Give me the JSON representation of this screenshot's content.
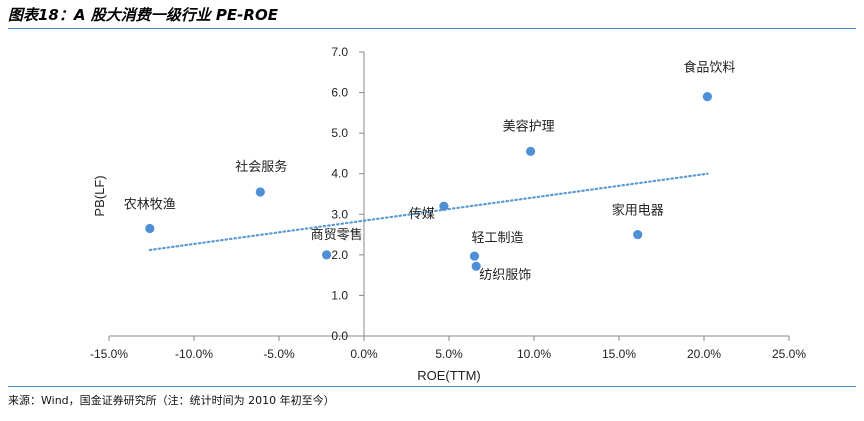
{
  "header": {
    "title": "图表18：A 股大消费一级行业 PE-ROE"
  },
  "footer": {
    "source": "来源：Wind，国金证券研究所（注：统计时间为 2010 年初至今）"
  },
  "colors": {
    "accent": "#4a86c5",
    "point": "#4f8fd6",
    "trend": "#5b9bd5",
    "axis": "#888888"
  },
  "chart_data": {
    "type": "scatter",
    "title": "",
    "xlabel": "ROE(TTM)",
    "ylabel": "PB(LF)",
    "xlim": [
      -0.15,
      0.25
    ],
    "ylim": [
      0.0,
      7.0
    ],
    "x_ticks": [
      -0.15,
      -0.1,
      -0.05,
      0.0,
      0.05,
      0.1,
      0.15,
      0.2,
      0.25
    ],
    "x_tick_labels": [
      "-15.0%",
      "-10.0%",
      "-5.0%",
      "0.0%",
      "5.0%",
      "10.0%",
      "15.0%",
      "20.0%",
      "25.0%"
    ],
    "y_ticks": [
      0,
      1,
      2,
      3,
      4,
      5,
      6,
      7
    ],
    "y_tick_labels": [
      "0.0",
      "1.0",
      "2.0",
      "3.0",
      "4.0",
      "5.0",
      "6.0",
      "7.0"
    ],
    "grid": false,
    "legend": false,
    "points": [
      {
        "label": "食品饮料",
        "x": 0.202,
        "y": 5.9
      },
      {
        "label": "美容护理",
        "x": 0.098,
        "y": 4.55
      },
      {
        "label": "社会服务",
        "x": -0.061,
        "y": 3.55
      },
      {
        "label": "农林牧渔",
        "x": -0.126,
        "y": 2.65
      },
      {
        "label": "传媒",
        "x": 0.047,
        "y": 3.2
      },
      {
        "label": "家用电器",
        "x": 0.161,
        "y": 2.5
      },
      {
        "label": "商贸零售",
        "x": -0.022,
        "y": 2.0
      },
      {
        "label": "轻工制造",
        "x": 0.065,
        "y": 1.97
      },
      {
        "label": "纺织服饰",
        "x": 0.066,
        "y": 1.72
      }
    ],
    "trendline": {
      "style": "dotted",
      "x": [
        -0.126,
        0.202
      ],
      "y": [
        2.12,
        4.0
      ]
    }
  }
}
